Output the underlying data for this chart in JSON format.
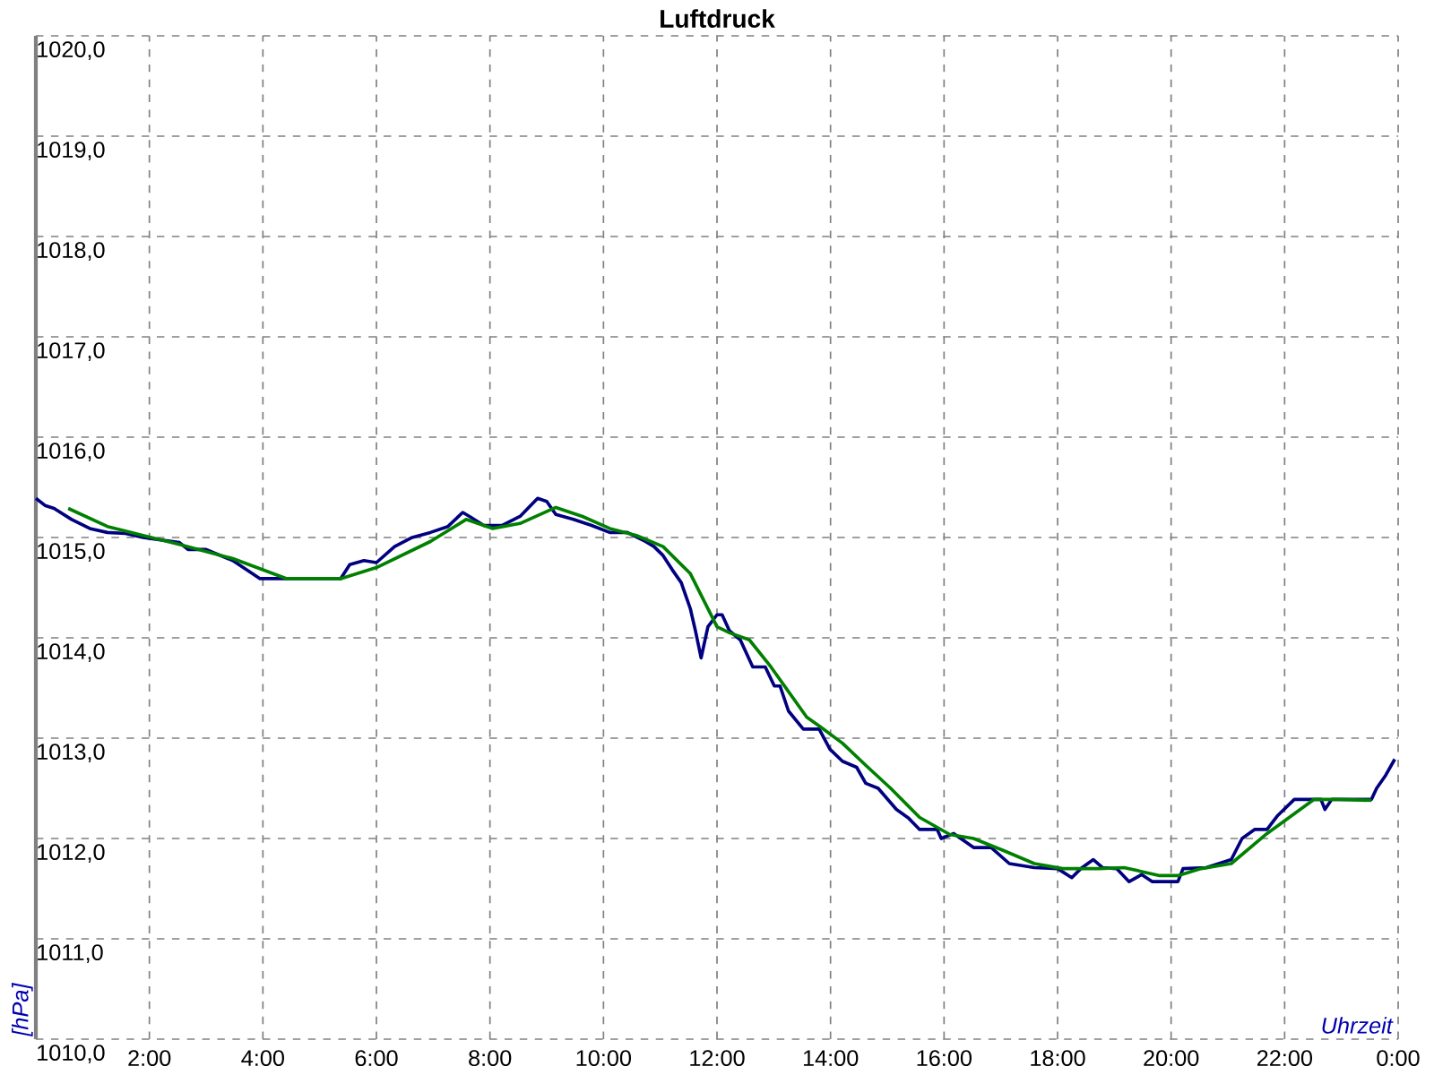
{
  "chart_data": {
    "type": "line",
    "title": "Luftdruck",
    "xlabel": "Uhrzeit",
    "ylabel": "[hPa]",
    "xlim": [
      0,
      24
    ],
    "ylim": [
      1010,
      1020
    ],
    "xticks": [
      {
        "value": 2,
        "label": "2:00"
      },
      {
        "value": 4,
        "label": "4:00"
      },
      {
        "value": 6,
        "label": "6:00"
      },
      {
        "value": 8,
        "label": "8:00"
      },
      {
        "value": 10,
        "label": "10:00"
      },
      {
        "value": 12,
        "label": "12:00"
      },
      {
        "value": 14,
        "label": "14:00"
      },
      {
        "value": 16,
        "label": "16:00"
      },
      {
        "value": 18,
        "label": "18:00"
      },
      {
        "value": 20,
        "label": "20:00"
      },
      {
        "value": 22,
        "label": "22:00"
      },
      {
        "value": 24,
        "label": "0:00"
      }
    ],
    "yticks": [
      {
        "value": 1010,
        "label": "1010,0"
      },
      {
        "value": 1011,
        "label": "1011,0"
      },
      {
        "value": 1012,
        "label": "1012,0"
      },
      {
        "value": 1013,
        "label": "1013,0"
      },
      {
        "value": 1014,
        "label": "1014,0"
      },
      {
        "value": 1015,
        "label": "1015,0"
      },
      {
        "value": 1016,
        "label": "1016,0"
      },
      {
        "value": 1017,
        "label": "1017,0"
      },
      {
        "value": 1018,
        "label": "1018,0"
      },
      {
        "value": 1019,
        "label": "1019,0"
      },
      {
        "value": 1020,
        "label": "1020,0"
      }
    ],
    "grid": true,
    "marker": "none",
    "line_style": "solid",
    "series": [
      {
        "color": "#000080",
        "x": [
          0,
          0.16,
          0.32,
          0.63,
          0.95,
          1.26,
          1.58,
          1.89,
          2.53,
          2.68,
          3.0,
          3.47,
          3.95,
          4.42,
          5.37,
          5.53,
          5.78,
          6.0,
          6.32,
          6.63,
          6.95,
          7.26,
          7.52,
          7.64,
          7.89,
          8.21,
          8.53,
          8.84,
          9.0,
          9.16,
          9.47,
          9.79,
          10.11,
          10.42,
          10.74,
          10.89,
          11.05,
          11.21,
          11.37,
          11.53,
          11.62,
          11.72,
          11.84,
          12.0,
          12.09,
          12.22,
          12.41,
          12.63,
          12.85,
          13.01,
          13.11,
          13.26,
          13.52,
          13.8,
          13.99,
          14.21,
          14.46,
          14.62,
          14.84,
          15.16,
          15.38,
          15.57,
          15.88,
          15.95,
          16.17,
          16.52,
          16.83,
          17.15,
          17.59,
          18.0,
          18.25,
          18.41,
          18.63,
          18.79,
          19.04,
          19.26,
          19.48,
          19.67,
          20.12,
          20.21,
          20.62,
          21.06,
          21.25,
          21.47,
          21.69,
          21.88,
          22.17,
          22.64,
          22.71,
          22.83,
          23.53,
          23.62,
          23.78,
          23.94
        ],
        "values": [
          1015.39,
          1015.32,
          1015.29,
          1015.18,
          1015.09,
          1015.05,
          1015.04,
          1015.0,
          1014.95,
          1014.88,
          1014.88,
          1014.77,
          1014.59,
          1014.59,
          1014.59,
          1014.73,
          1014.77,
          1014.75,
          1014.91,
          1015.0,
          1015.05,
          1015.11,
          1015.25,
          1015.21,
          1015.12,
          1015.12,
          1015.21,
          1015.39,
          1015.36,
          1015.23,
          1015.18,
          1015.12,
          1015.05,
          1015.05,
          1014.96,
          1014.91,
          1014.82,
          1014.68,
          1014.55,
          1014.29,
          1014.07,
          1013.8,
          1014.11,
          1014.23,
          1014.23,
          1014.07,
          1013.98,
          1013.71,
          1013.71,
          1013.52,
          1013.52,
          1013.27,
          1013.09,
          1013.09,
          1012.89,
          1012.77,
          1012.71,
          1012.55,
          1012.5,
          1012.29,
          1012.2,
          1012.09,
          1012.09,
          1012.0,
          1012.05,
          1011.91,
          1011.91,
          1011.75,
          1011.71,
          1011.7,
          1011.61,
          1011.7,
          1011.79,
          1011.71,
          1011.7,
          1011.57,
          1011.64,
          1011.57,
          1011.57,
          1011.7,
          1011.71,
          1011.79,
          1012.0,
          1012.09,
          1012.09,
          1012.23,
          1012.39,
          1012.39,
          1012.29,
          1012.39,
          1012.39,
          1012.5,
          1012.63,
          1012.79
        ]
      },
      {
        "color": "#008000",
        "x": [
          0.57,
          1.26,
          1.89,
          2.53,
          3.47,
          4.42,
          5.37,
          6.0,
          6.95,
          7.58,
          8.05,
          8.53,
          9.16,
          9.63,
          10.11,
          10.58,
          11.05,
          11.53,
          12.0,
          12.22,
          12.57,
          12.95,
          13.58,
          13.83,
          14.21,
          14.62,
          15.06,
          15.57,
          16.1,
          16.52,
          17.05,
          17.59,
          18.09,
          18.73,
          19.17,
          19.8,
          20.12,
          20.53,
          21.06,
          21.69,
          22.52,
          22.96,
          23.53
        ],
        "values": [
          1015.29,
          1015.11,
          1015.02,
          1014.93,
          1014.79,
          1014.59,
          1014.59,
          1014.7,
          1014.96,
          1015.18,
          1015.09,
          1015.14,
          1015.3,
          1015.21,
          1015.09,
          1015.02,
          1014.91,
          1014.64,
          1014.11,
          1014.05,
          1013.98,
          1013.71,
          1013.21,
          1013.11,
          1012.95,
          1012.73,
          1012.5,
          1012.21,
          1012.04,
          1012.0,
          1011.88,
          1011.75,
          1011.7,
          1011.7,
          1011.71,
          1011.63,
          1011.63,
          1011.7,
          1011.75,
          1012.05,
          1012.39,
          1012.39,
          1012.38
        ]
      }
    ]
  }
}
